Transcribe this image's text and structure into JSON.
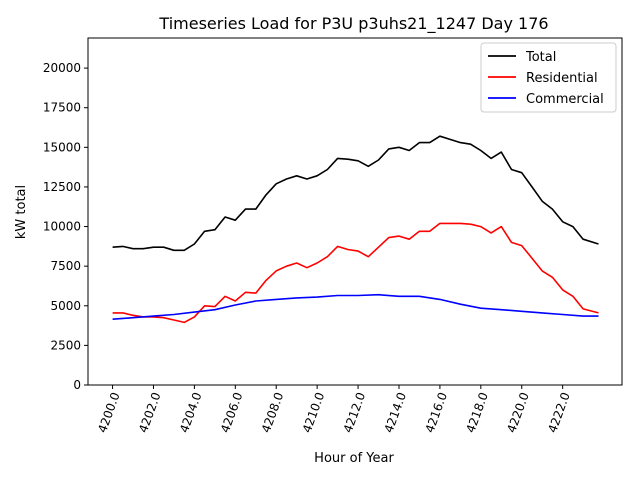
{
  "chart_data": {
    "type": "line",
    "title": "Timeseries Load for P3U p3uhs21_1247  Day 176",
    "xlabel": "Hour of Year",
    "ylabel": "kW total",
    "xlim": [
      4198.8,
      4224.9
    ],
    "ylim": [
      0,
      21900
    ],
    "xticks": [
      "4200.0",
      "4202.0",
      "4204.0",
      "4206.0",
      "4208.0",
      "4210.0",
      "4212.0",
      "4214.0",
      "4216.0",
      "4218.0",
      "4220.0",
      "4222.0"
    ],
    "yticks": [
      "0",
      "2500",
      "5000",
      "7500",
      "10000",
      "12500",
      "15000",
      "17500",
      "20000"
    ],
    "grid": false,
    "legend_position": "top-right",
    "series": [
      {
        "name": "Total",
        "color": "#000000",
        "x": [
          4200,
          4200.5,
          4201,
          4201.5,
          4202,
          4202.5,
          4203,
          4203.5,
          4204,
          4204.5,
          4205,
          4205.5,
          4206,
          4206.5,
          4207,
          4207.5,
          4208,
          4208.5,
          4209,
          4209.5,
          4210,
          4210.5,
          4211,
          4211.5,
          4212,
          4212.5,
          4213,
          4213.5,
          4214,
          4214.5,
          4215,
          4215.5,
          4216,
          4216.5,
          4217,
          4217.5,
          4218,
          4218.5,
          4219,
          4219.5,
          4220,
          4220.5,
          4221,
          4221.5,
          4222,
          4222.5,
          4223,
          4223.75
        ],
        "y": [
          8700,
          8750,
          8600,
          8600,
          8700,
          8700,
          8500,
          8500,
          8900,
          9700,
          9800,
          10600,
          10400,
          11100,
          11100,
          12000,
          12700,
          13000,
          13200,
          13000,
          13200,
          13600,
          14300,
          14250,
          14150,
          13800,
          14200,
          14900,
          15000,
          14800,
          15300,
          15300,
          15700,
          15500,
          15300,
          15200,
          14800,
          14300,
          14700,
          13600,
          13400,
          12500,
          11600,
          11100,
          10300,
          10000,
          9200,
          8900
        ]
      },
      {
        "name": "Residential",
        "color": "#ff0000",
        "x": [
          4200,
          4200.5,
          4201,
          4201.5,
          4202,
          4202.5,
          4203,
          4203.5,
          4204,
          4204.5,
          4205,
          4205.5,
          4206,
          4206.5,
          4207,
          4207.5,
          4208,
          4208.5,
          4209,
          4209.5,
          4210,
          4210.5,
          4211,
          4211.5,
          4212,
          4212.5,
          4213,
          4213.5,
          4214,
          4214.5,
          4215,
          4215.5,
          4216,
          4216.5,
          4217,
          4217.5,
          4218,
          4218.5,
          4219,
          4219.5,
          4220,
          4220.5,
          4221,
          4221.5,
          4222,
          4222.5,
          4223,
          4223.75
        ],
        "y": [
          4550,
          4550,
          4400,
          4300,
          4300,
          4250,
          4100,
          3950,
          4300,
          5000,
          4950,
          5600,
          5300,
          5850,
          5800,
          6600,
          7200,
          7500,
          7700,
          7400,
          7700,
          8100,
          8750,
          8550,
          8450,
          8100,
          8700,
          9300,
          9400,
          9200,
          9700,
          9700,
          10200,
          10200,
          10200,
          10150,
          10000,
          9600,
          10000,
          9000,
          8800,
          8000,
          7200,
          6800,
          6000,
          5600,
          4800,
          4550
        ]
      },
      {
        "name": "Commercial",
        "color": "#0000ff",
        "x": [
          4200,
          4201,
          4202,
          4203,
          4204,
          4205,
          4206,
          4207,
          4208,
          4209,
          4210,
          4211,
          4212,
          4213,
          4214,
          4215,
          4216,
          4217,
          4218,
          4219,
          4220,
          4221,
          4222,
          4223,
          4223.75
        ],
        "y": [
          4150,
          4250,
          4350,
          4450,
          4600,
          4750,
          5050,
          5300,
          5400,
          5500,
          5550,
          5650,
          5650,
          5700,
          5600,
          5600,
          5400,
          5100,
          4850,
          4750,
          4650,
          4550,
          4450,
          4350,
          4350
        ]
      }
    ]
  }
}
